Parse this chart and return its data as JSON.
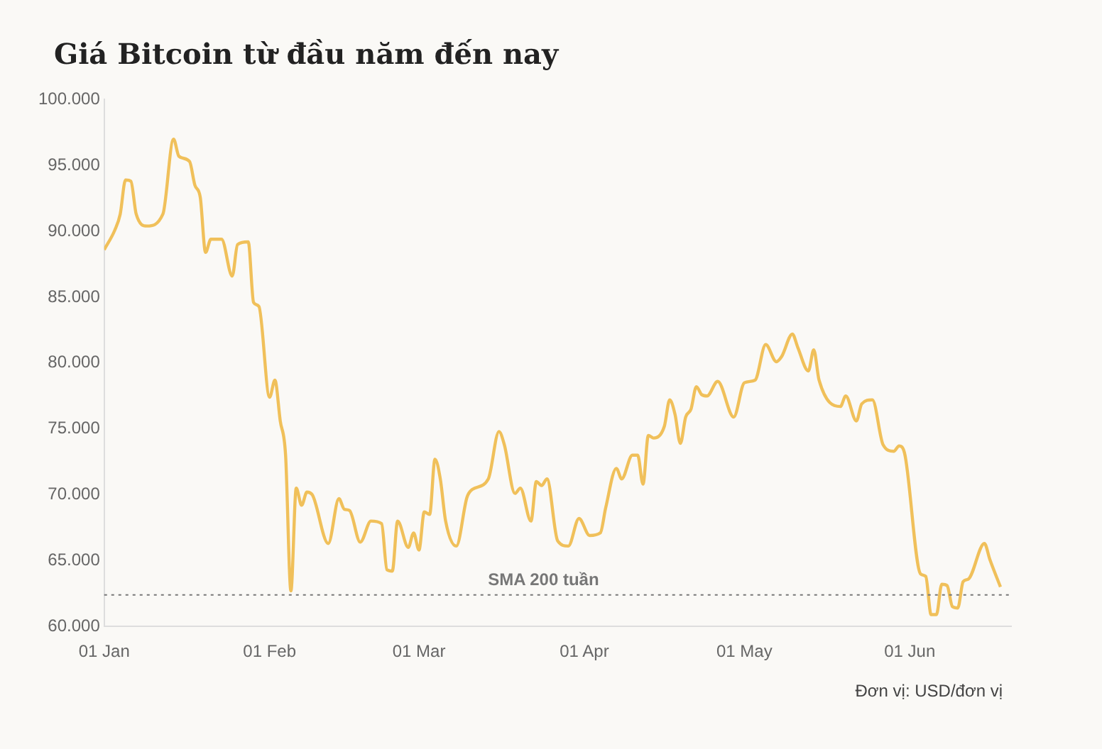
{
  "chart_data": {
    "type": "line",
    "title": "Giá Bitcoin từ đầu năm đến nay",
    "x": [
      "--01-01",
      "--01-03",
      "--01-04",
      "--01-05",
      "--01-06",
      "--01-07",
      "--01-09",
      "--01-12",
      "--01-14",
      "--01-15",
      "--01-17",
      "--01-18",
      "--01-19",
      "--01-20",
      "--01-21",
      "--01-23",
      "--01-25",
      "--01-26",
      "--01-28",
      "--01-29",
      "--01-30",
      "--02-01",
      "--02-02",
      "--02-03",
      "--02-04",
      "--02-05",
      "--02-06",
      "--02-07",
      "--02-08",
      "--02-09",
      "--02-12",
      "--02-14",
      "--02-15",
      "--02-16",
      "--02-18",
      "--02-20",
      "--02-22",
      "--02-23",
      "--02-24",
      "--02-25",
      "--02-27",
      "--02-28",
      "--03-01",
      "--03-02",
      "--03-03",
      "--03-04",
      "--03-05",
      "--03-06",
      "--03-08",
      "--03-10",
      "--03-11",
      "--03-14",
      "--03-16",
      "--03-17",
      "--03-19",
      "--03-20",
      "--03-22",
      "--03-23",
      "--03-24",
      "--03-25",
      "--03-27",
      "--03-29",
      "--03-31",
      "--04-02",
      "--04-04",
      "--04-05",
      "--04-07",
      "--04-08",
      "--04-10",
      "--04-11",
      "--04-12",
      "--04-13",
      "--04-14",
      "--04-16",
      "--04-17",
      "--04-18",
      "--04-19",
      "--04-20",
      "--04-21",
      "--04-22",
      "--04-23",
      "--04-24",
      "--04-26",
      "--04-29",
      "--05-01",
      "--05-03",
      "--05-05",
      "--05-07",
      "--05-08",
      "--05-10",
      "--05-11",
      "--05-13",
      "--05-14",
      "--05-15",
      "--05-19",
      "--05-20",
      "--05-22",
      "--05-23",
      "--05-25",
      "--05-27",
      "--05-29",
      "--05-30",
      "--05-31",
      "--06-03",
      "--06-04",
      "--06-05",
      "--06-06",
      "--06-07",
      "--06-08",
      "--06-09",
      "--06-10",
      "--06-11",
      "--06-12",
      "--06-15",
      "--06-16",
      "--06-18"
    ],
    "series": [
      {
        "color": "#f0c05a",
        "values": [
          88600,
          90100,
          91300,
          93900,
          93800,
          91300,
          90400,
          91300,
          97000,
          95700,
          95300,
          93500,
          92600,
          88400,
          89400,
          89400,
          86600,
          89000,
          89200,
          84600,
          84300,
          77400,
          78700,
          75600,
          73000,
          62700,
          70500,
          69200,
          70200,
          70000,
          66300,
          69700,
          68900,
          68800,
          66400,
          68000,
          67800,
          64300,
          64200,
          68000,
          66000,
          67100,
          65800,
          68700,
          68500,
          72700,
          71200,
          68000,
          66100,
          69800,
          70400,
          71200,
          74800,
          73800,
          70100,
          70500,
          68000,
          71000,
          70700,
          71200,
          66500,
          66100,
          68200,
          66900,
          67100,
          69000,
          72000,
          71200,
          73000,
          73000,
          70800,
          74500,
          74300,
          75200,
          77200,
          76100,
          73900,
          75900,
          76500,
          78200,
          77600,
          77500,
          78600,
          75900,
          78500,
          78700,
          81400,
          80100,
          80500,
          82200,
          81200,
          79400,
          81000,
          78700,
          76700,
          77500,
          75600,
          76900,
          77200,
          73800,
          73300,
          73700,
          73200,
          64000,
          63800,
          60900,
          60900,
          63200,
          63100,
          61500,
          61400,
          63400,
          63600,
          66300,
          65100,
          63000
        ]
      }
    ],
    "xlim": [
      "--01-01",
      "--06-20"
    ],
    "xticks": [
      {
        "value": "--01-01",
        "label": "01 Jan"
      },
      {
        "value": "--02-01",
        "label": "01 Feb"
      },
      {
        "value": "--03-01",
        "label": "01 Mar"
      },
      {
        "value": "--04-01",
        "label": "01 Apr"
      },
      {
        "value": "--05-01",
        "label": "01 May"
      },
      {
        "value": "--06-01",
        "label": "01 Jun"
      }
    ],
    "ylim": [
      60000,
      100000
    ],
    "yticks": [
      {
        "value": 60000,
        "label": "60.000"
      },
      {
        "value": 65000,
        "label": "65.000"
      },
      {
        "value": 70000,
        "label": "70.000"
      },
      {
        "value": 75000,
        "label": "75.000"
      },
      {
        "value": 80000,
        "label": "80.000"
      },
      {
        "value": 85000,
        "label": "85.000"
      },
      {
        "value": 90000,
        "label": "90.000"
      },
      {
        "value": 95000,
        "label": "95.000"
      },
      {
        "value": 100000,
        "label": "100.000"
      }
    ],
    "ref_lines": [
      {
        "axis": "y",
        "value": 62400,
        "label": "SMA 200 tuần",
        "color": "#777777",
        "line_style": "dotted"
      }
    ],
    "annotations": [
      "Đơn vị: USD/đơn vị"
    ],
    "grid": false,
    "legend": false,
    "marker": "none",
    "line_style": "solid"
  }
}
